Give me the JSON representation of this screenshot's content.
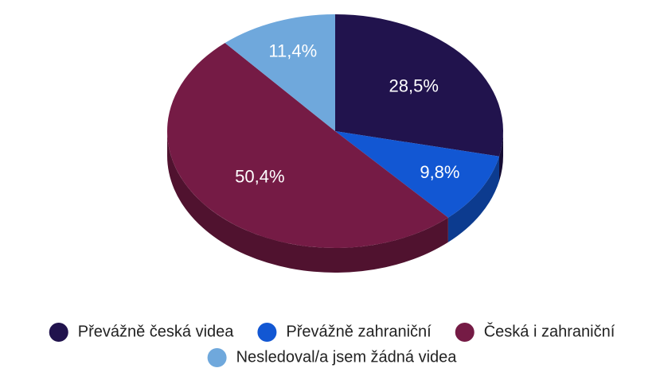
{
  "chart_data": {
    "type": "pie",
    "categories": [
      "Převážně česká videa",
      "Převážně zahraniční",
      "Česká i zahraniční",
      "Nesledoval/a jsem žádná videa"
    ],
    "values": [
      28.5,
      9.8,
      50.4,
      11.4
    ],
    "value_labels": [
      "28,5%",
      "9,8%",
      "50,4%",
      "11,4%"
    ],
    "colors": [
      "#21134d",
      "#1257d3",
      "#751b45",
      "#6fa8dc"
    ],
    "legend": "bottom"
  }
}
